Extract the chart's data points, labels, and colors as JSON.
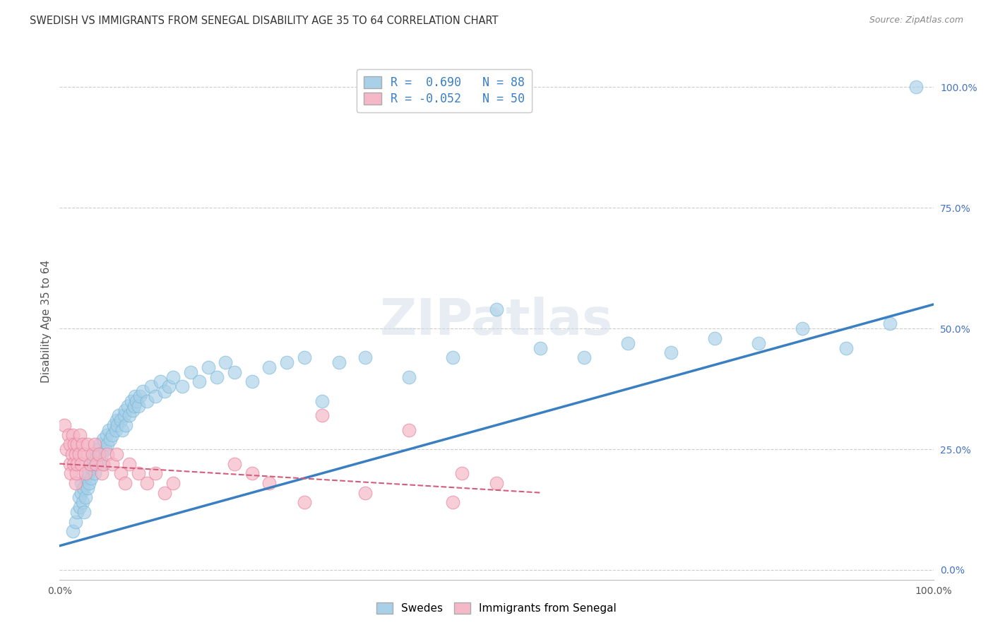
{
  "title": "SWEDISH VS IMMIGRANTS FROM SENEGAL DISABILITY AGE 35 TO 64 CORRELATION CHART",
  "source": "Source: ZipAtlas.com",
  "ylabel": "Disability Age 35 to 64",
  "xlim": [
    0,
    100
  ],
  "ylim": [
    -2,
    105
  ],
  "right_yticks": [
    0,
    25,
    50,
    75,
    100
  ],
  "right_yticklabels": [
    "0.0%",
    "25.0%",
    "50.0%",
    "75.0%",
    "100.0%"
  ],
  "bottom_xticks": [
    0,
    20,
    40,
    60,
    80,
    100
  ],
  "bottom_xticklabels": [
    "0.0%",
    "",
    "",
    "",
    "",
    "100.0%"
  ],
  "swedes_R": 0.69,
  "swedes_N": 88,
  "senegal_R": -0.052,
  "senegal_N": 50,
  "blue_color": "#a8d0e8",
  "blue_edge_color": "#7ab8d9",
  "blue_line_color": "#3a7fc1",
  "pink_color": "#f5b8c8",
  "pink_edge_color": "#e8849c",
  "pink_line_color": "#d45c7a",
  "watermark": "ZIPatlas",
  "legend_label_swedes": "Swedes",
  "legend_label_senegal": "Immigrants from Senegal",
  "swedes_x": [
    1.5,
    1.8,
    2.0,
    2.2,
    2.3,
    2.5,
    2.5,
    2.6,
    2.7,
    2.8,
    3.0,
    3.0,
    3.2,
    3.3,
    3.4,
    3.5,
    3.6,
    3.7,
    3.8,
    4.0,
    4.0,
    4.2,
    4.4,
    4.5,
    4.6,
    4.8,
    5.0,
    5.0,
    5.2,
    5.4,
    5.5,
    5.6,
    5.8,
    6.0,
    6.2,
    6.4,
    6.5,
    6.6,
    6.8,
    7.0,
    7.2,
    7.4,
    7.5,
    7.6,
    7.8,
    8.0,
    8.2,
    8.4,
    8.5,
    8.6,
    8.8,
    9.0,
    9.2,
    9.5,
    10.0,
    10.5,
    11.0,
    11.5,
    12.0,
    12.5,
    13.0,
    14.0,
    15.0,
    16.0,
    17.0,
    18.0,
    19.0,
    20.0,
    22.0,
    24.0,
    26.0,
    28.0,
    30.0,
    32.0,
    35.0,
    40.0,
    45.0,
    50.0,
    55.0,
    60.0,
    65.0,
    70.0,
    75.0,
    80.0,
    85.0,
    90.0,
    95.0,
    98.0
  ],
  "swedes_y": [
    8.0,
    10.0,
    12.0,
    15.0,
    13.0,
    16.0,
    18.0,
    14.0,
    17.0,
    12.0,
    15.0,
    19.0,
    17.0,
    20.0,
    18.0,
    22.0,
    19.0,
    21.0,
    23.0,
    20.0,
    24.0,
    22.0,
    25.0,
    23.0,
    26.0,
    24.0,
    22.0,
    27.0,
    25.0,
    28.0,
    26.0,
    29.0,
    27.0,
    28.0,
    30.0,
    29.0,
    31.0,
    30.0,
    32.0,
    31.0,
    29.0,
    32.0,
    33.0,
    30.0,
    34.0,
    32.0,
    35.0,
    33.0,
    34.0,
    36.0,
    35.0,
    34.0,
    36.0,
    37.0,
    35.0,
    38.0,
    36.0,
    39.0,
    37.0,
    38.0,
    40.0,
    38.0,
    41.0,
    39.0,
    42.0,
    40.0,
    43.0,
    41.0,
    39.0,
    42.0,
    43.0,
    44.0,
    35.0,
    43.0,
    44.0,
    40.0,
    44.0,
    54.0,
    46.0,
    44.0,
    47.0,
    45.0,
    48.0,
    47.0,
    50.0,
    46.0,
    51.0,
    100.0
  ],
  "senegal_x": [
    0.5,
    0.8,
    1.0,
    1.2,
    1.2,
    1.3,
    1.4,
    1.5,
    1.6,
    1.7,
    1.8,
    1.8,
    1.9,
    2.0,
    2.0,
    2.2,
    2.3,
    2.5,
    2.6,
    2.8,
    3.0,
    3.2,
    3.5,
    3.8,
    4.0,
    4.2,
    4.5,
    4.8,
    5.0,
    5.5,
    6.0,
    6.5,
    7.0,
    7.5,
    8.0,
    9.0,
    10.0,
    11.0,
    12.0,
    13.0,
    20.0,
    22.0,
    24.0,
    28.0,
    30.0,
    35.0,
    40.0,
    45.0,
    46.0,
    50.0
  ],
  "senegal_y": [
    30.0,
    25.0,
    28.0,
    22.0,
    26.0,
    20.0,
    24.0,
    28.0,
    22.0,
    26.0,
    18.0,
    24.0,
    20.0,
    22.0,
    26.0,
    24.0,
    28.0,
    22.0,
    26.0,
    24.0,
    20.0,
    26.0,
    22.0,
    24.0,
    26.0,
    22.0,
    24.0,
    20.0,
    22.0,
    24.0,
    22.0,
    24.0,
    20.0,
    18.0,
    22.0,
    20.0,
    18.0,
    20.0,
    16.0,
    18.0,
    22.0,
    20.0,
    18.0,
    14.0,
    32.0,
    16.0,
    29.0,
    14.0,
    20.0,
    18.0
  ],
  "blue_line_x0": 0,
  "blue_line_x1": 100,
  "blue_line_y0": 5.0,
  "blue_line_y1": 55.0,
  "pink_line_x0": 0,
  "pink_line_x1": 55,
  "pink_line_y0": 22.0,
  "pink_line_y1": 16.0
}
